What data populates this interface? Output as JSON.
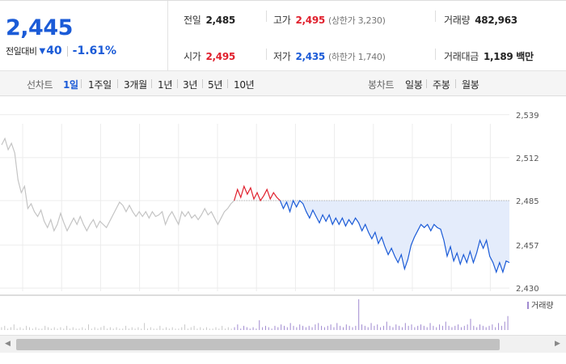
{
  "quote": {
    "price": "2,445",
    "change_label": "전일대비",
    "change_icon": "down-triangle-icon",
    "change_value": "40",
    "change_rate": "-1.61%",
    "prev_close": {
      "label": "전일",
      "value": "2,485"
    },
    "high": {
      "label": "고가",
      "value": "2,495",
      "sub": "(상한가 3,230)"
    },
    "volume": {
      "label": "거래량",
      "value": "482,963"
    },
    "open": {
      "label": "시가",
      "value": "2,495"
    },
    "low": {
      "label": "저가",
      "value": "2,435",
      "sub": "(하한가 1,740)"
    },
    "trade_value": {
      "label": "거래대금",
      "value": "1,189 백만"
    }
  },
  "line_chart_tabs": {
    "label": "선차트",
    "items": [
      "1일",
      "1주일",
      "3개월",
      "1년",
      "3년",
      "5년",
      "10년"
    ],
    "active": "1일"
  },
  "candle_chart_tabs": {
    "label": "봉차트",
    "items": [
      "일봉",
      "주봉",
      "월봉"
    ]
  },
  "volume_legend": "거래량",
  "colors": {
    "up": "#e0202d",
    "down": "#1b5bd7",
    "history": "#c4c4c4",
    "fill": "#e4ecfb",
    "volume": "#a08ad0"
  },
  "chart_data": {
    "type": "line",
    "title": "",
    "ylim": [
      2428,
      2545
    ],
    "yticks": [
      2539,
      2512,
      2485,
      2457,
      2430
    ],
    "ytick_labels": [
      "2,539",
      "2,512",
      "2,485",
      "2,457",
      "2,430"
    ],
    "reference_line": 2485,
    "grid": true,
    "series": [
      {
        "values": [
          2520,
          2524,
          2517,
          2521,
          2515,
          2498,
          2490,
          2494,
          2480,
          2483,
          2478,
          2475,
          2479,
          2472,
          2468,
          2473,
          2466,
          2470,
          2477,
          2471,
          2466,
          2470,
          2474,
          2470,
          2475,
          2470,
          2466,
          2470,
          2473,
          2468,
          2472,
          2470,
          2468,
          2472,
          2476,
          2480,
          2484,
          2482,
          2478,
          2482,
          2478,
          2475,
          2478,
          2475,
          2478,
          2474,
          2478,
          2475,
          2476,
          2478,
          2470,
          2475,
          2478,
          2474,
          2470,
          2478,
          2475,
          2478,
          2474,
          2476,
          2473,
          2476,
          2480,
          2476,
          2478,
          2474,
          2470,
          2474,
          2478,
          2480,
          2483,
          2485
        ]
      },
      {
        "values": [
          2485,
          2492,
          2487,
          2494,
          2489,
          2493,
          2486,
          2490,
          2485,
          2488,
          2492,
          2486,
          2490,
          2487,
          2485
        ]
      },
      {
        "values": [
          2485,
          2480,
          2484,
          2478,
          2485,
          2481,
          2485,
          2483,
          2478,
          2474,
          2479,
          2475,
          2471,
          2476,
          2472,
          2476,
          2470,
          2474,
          2470,
          2474,
          2469,
          2473,
          2470,
          2474,
          2471,
          2466,
          2470,
          2465,
          2461,
          2465,
          2458,
          2462,
          2456,
          2451,
          2455,
          2450,
          2446,
          2451,
          2442,
          2448,
          2457,
          2462,
          2466,
          2470,
          2468,
          2470,
          2466,
          2470,
          2468,
          2467,
          2460,
          2450,
          2456,
          2447,
          2452,
          2445,
          2451,
          2446,
          2453,
          2446,
          2452,
          2460,
          2455,
          2460,
          2450,
          2446,
          2440,
          2446,
          2440,
          2447,
          2446
        ]
      }
    ],
    "volume": [
      2,
      3,
      1,
      2,
      4,
      1,
      2,
      1,
      3,
      2,
      1,
      2,
      1,
      1,
      3,
      2,
      1,
      2,
      1,
      2,
      1,
      3,
      1,
      2,
      1,
      1,
      2,
      1,
      4,
      1,
      2,
      1,
      2,
      3,
      1,
      2,
      1,
      2,
      1,
      1,
      3,
      1,
      2,
      1,
      2,
      1,
      5,
      1,
      2,
      1,
      1,
      3,
      1,
      2,
      1,
      2,
      1,
      1,
      2,
      4,
      1,
      2,
      3,
      1,
      2,
      1,
      2,
      1,
      1,
      2,
      1,
      3,
      1,
      2,
      1,
      2,
      4,
      1,
      3,
      2,
      1,
      2,
      1,
      7,
      2,
      3,
      2,
      1,
      3,
      2,
      4,
      3,
      2,
      5,
      3,
      2,
      4,
      3,
      2,
      3,
      2,
      4,
      5,
      3,
      2,
      3,
      4,
      2,
      5,
      3,
      2,
      4,
      3,
      2,
      3,
      22,
      4,
      3,
      2,
      5,
      3,
      4,
      2,
      3,
      6,
      3,
      2,
      4,
      3,
      2,
      5,
      3,
      4,
      2,
      3,
      4,
      3,
      2,
      5,
      3,
      2,
      4,
      3,
      6,
      3,
      2,
      3,
      4,
      2,
      3,
      4,
      8,
      3,
      2,
      4,
      3,
      2,
      3,
      4,
      2,
      5,
      3,
      6,
      10
    ]
  }
}
